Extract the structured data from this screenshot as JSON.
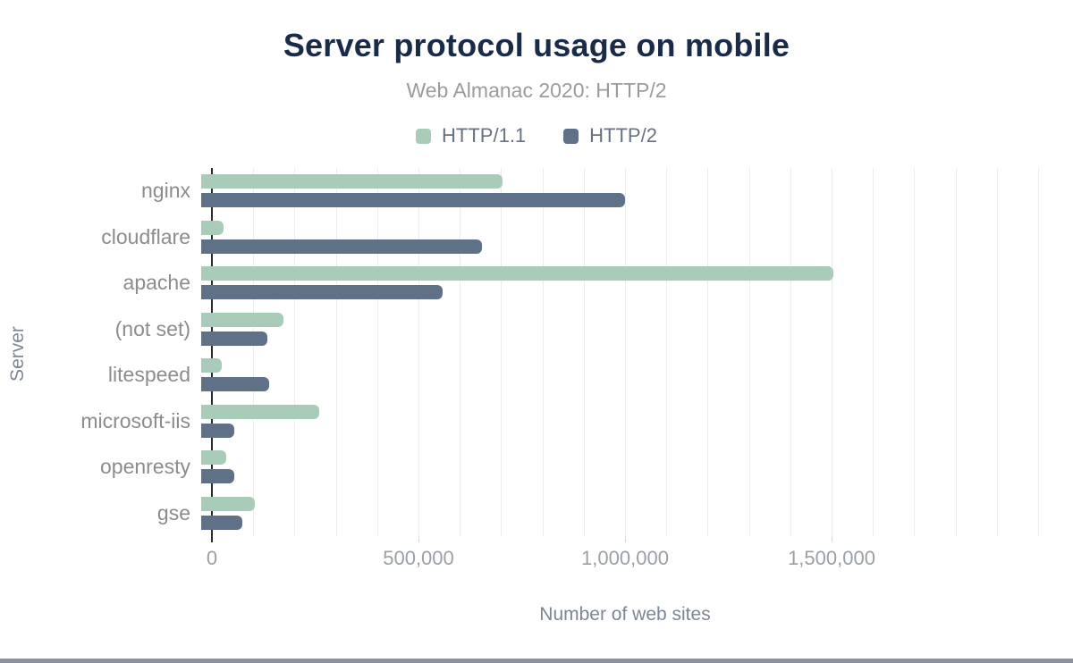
{
  "header": {
    "title": "Server protocol usage on mobile",
    "subtitle": "Web Almanac 2020: HTTP/2"
  },
  "legend": [
    {
      "label": "HTTP/1.1",
      "color": "#a9ccb9"
    },
    {
      "label": "HTTP/2",
      "color": "#5f7186"
    }
  ],
  "chart_data": {
    "type": "bar",
    "orientation": "horizontal",
    "title": "Server protocol usage on mobile",
    "subtitle": "Web Almanac 2020: HTTP/2",
    "categories": [
      "nginx",
      "cloudflare",
      "apache",
      "(not set)",
      "litespeed",
      "microsoft-iis",
      "openresty",
      "gse"
    ],
    "series": [
      {
        "name": "HTTP/1.1",
        "color": "#a9ccb9",
        "values": [
          730000,
          55000,
          1530000,
          200000,
          50000,
          285000,
          60000,
          130000
        ]
      },
      {
        "name": "HTTP/2",
        "color": "#5f7186",
        "values": [
          1025000,
          680000,
          585000,
          160000,
          165000,
          80000,
          80000,
          100000
        ]
      }
    ],
    "xlabel": "Number of web sites",
    "ylabel": "Server",
    "xlim": [
      0,
      2000000
    ],
    "xticks": [
      {
        "value": 0,
        "label": "0"
      },
      {
        "value": 500000,
        "label": "500,000"
      },
      {
        "value": 1000000,
        "label": "1,000,000"
      },
      {
        "value": 1500000,
        "label": "1,500,000"
      }
    ],
    "minor_grid_interval": 100000,
    "grid": true,
    "legend_position": "top"
  },
  "colors": {
    "title": "#1a2b49",
    "subtitle": "#9b9b9b",
    "axis_line": "#2b2b2b",
    "grid_line": "#ededed",
    "tick_label": "#999fa6",
    "bottom_bar": "#8792a2"
  }
}
